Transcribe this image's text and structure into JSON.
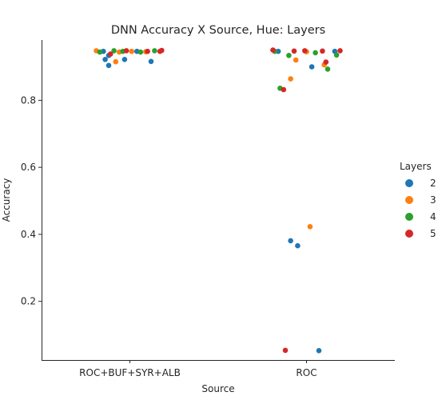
{
  "chart_data": {
    "type": "scatter",
    "title": "DNN Accuracy X Source, Hue: Layers",
    "xlabel": "Source",
    "ylabel": "Accuracy",
    "categories": [
      "ROC+BUF+SYR+ALB",
      "ROC"
    ],
    "ylim": [
      0.025,
      0.98
    ],
    "yticks": [
      "0.2",
      "0.4",
      "0.6",
      "0.8"
    ],
    "grid": false,
    "legend": {
      "title": "Layers",
      "placement": "right"
    },
    "series": [
      {
        "name": "2",
        "color": "#1f77b4",
        "points": [
          {
            "category": 0,
            "jitter": -0.15,
            "y": 0.946
          },
          {
            "category": 0,
            "jitter": -0.12,
            "y": 0.934
          },
          {
            "category": 0,
            "jitter": -0.14,
            "y": 0.922
          },
          {
            "category": 0,
            "jitter": -0.12,
            "y": 0.904
          },
          {
            "category": 0,
            "jitter": -0.03,
            "y": 0.922
          },
          {
            "category": 0,
            "jitter": 0.12,
            "y": 0.916
          },
          {
            "category": 0,
            "jitter": 0.04,
            "y": 0.946
          },
          {
            "category": 1,
            "jitter": -0.16,
            "y": 0.946
          },
          {
            "category": 1,
            "jitter": 0.03,
            "y": 0.9
          },
          {
            "category": 1,
            "jitter": 0.16,
            "y": 0.946
          },
          {
            "category": 1,
            "jitter": -0.09,
            "y": 0.381
          },
          {
            "category": 1,
            "jitter": -0.05,
            "y": 0.366
          },
          {
            "category": 1,
            "jitter": 0.07,
            "y": 0.053
          }
        ]
      },
      {
        "name": "3",
        "color": "#ff7f0e",
        "points": [
          {
            "category": 0,
            "jitter": -0.19,
            "y": 0.948
          },
          {
            "category": 0,
            "jitter": -0.06,
            "y": 0.944
          },
          {
            "category": 0,
            "jitter": -0.08,
            "y": 0.915
          },
          {
            "category": 0,
            "jitter": 0.01,
            "y": 0.946
          },
          {
            "category": 0,
            "jitter": 0.09,
            "y": 0.945
          },
          {
            "category": 1,
            "jitter": -0.09,
            "y": 0.864
          },
          {
            "category": 1,
            "jitter": -0.06,
            "y": 0.92
          },
          {
            "category": 1,
            "jitter": 0.0,
            "y": 0.945
          },
          {
            "category": 1,
            "jitter": 0.1,
            "y": 0.906
          },
          {
            "category": 1,
            "jitter": 0.02,
            "y": 0.423
          }
        ]
      },
      {
        "name": "4",
        "color": "#2ca02c",
        "points": [
          {
            "category": 0,
            "jitter": -0.17,
            "y": 0.944
          },
          {
            "category": 0,
            "jitter": -0.09,
            "y": 0.948
          },
          {
            "category": 0,
            "jitter": -0.04,
            "y": 0.946
          },
          {
            "category": 0,
            "jitter": 0.06,
            "y": 0.944
          },
          {
            "category": 0,
            "jitter": 0.14,
            "y": 0.948
          },
          {
            "category": 1,
            "jitter": -0.18,
            "y": 0.946
          },
          {
            "category": 1,
            "jitter": -0.1,
            "y": 0.934
          },
          {
            "category": 1,
            "jitter": 0.05,
            "y": 0.942
          },
          {
            "category": 1,
            "jitter": 0.17,
            "y": 0.935
          },
          {
            "category": 1,
            "jitter": 0.12,
            "y": 0.893
          },
          {
            "category": 1,
            "jitter": -0.15,
            "y": 0.836
          }
        ]
      },
      {
        "name": "5",
        "color": "#d62728",
        "points": [
          {
            "category": 0,
            "jitter": -0.11,
            "y": 0.938
          },
          {
            "category": 0,
            "jitter": -0.02,
            "y": 0.948
          },
          {
            "category": 0,
            "jitter": 0.1,
            "y": 0.946
          },
          {
            "category": 0,
            "jitter": 0.18,
            "y": 0.949
          },
          {
            "category": 0,
            "jitter": 0.17,
            "y": 0.946
          },
          {
            "category": 1,
            "jitter": -0.19,
            "y": 0.95
          },
          {
            "category": 1,
            "jitter": -0.07,
            "y": 0.947
          },
          {
            "category": 1,
            "jitter": -0.01,
            "y": 0.948
          },
          {
            "category": 1,
            "jitter": 0.09,
            "y": 0.947
          },
          {
            "category": 1,
            "jitter": 0.19,
            "y": 0.948
          },
          {
            "category": 1,
            "jitter": 0.11,
            "y": 0.914
          },
          {
            "category": 1,
            "jitter": -0.13,
            "y": 0.832
          },
          {
            "category": 1,
            "jitter": -0.12,
            "y": 0.054
          }
        ]
      }
    ]
  }
}
